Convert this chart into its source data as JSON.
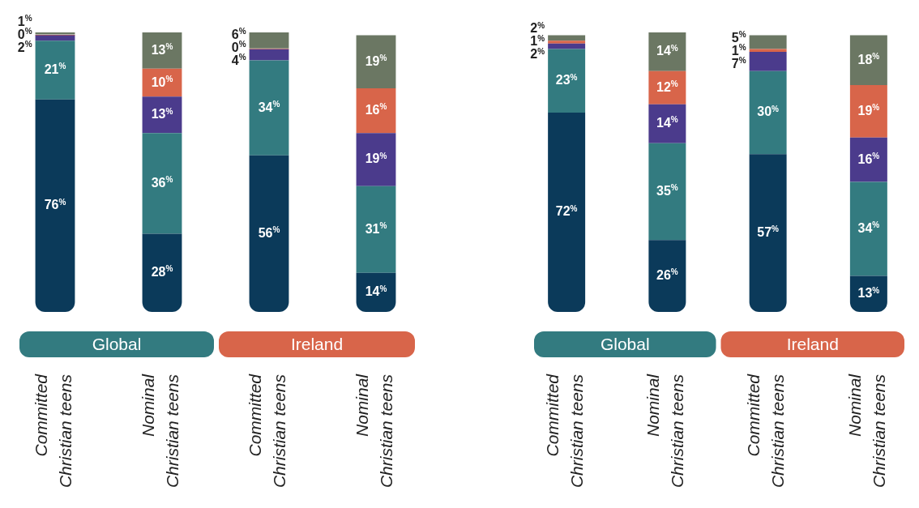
{
  "chart_data": [
    {
      "type": "bar",
      "stacked": true,
      "categories": [
        "Committed Christian teens",
        "Nominal Christian teens",
        "Committed Christian teens",
        "Nominal Christian teens"
      ],
      "series": [
        {
          "color": "#0b3a5a",
          "values": [
            76,
            28,
            56,
            14
          ],
          "value_labels": [
            "76%",
            "28%",
            "56%",
            "14%"
          ]
        },
        {
          "color": "#337b80",
          "values": [
            21,
            36,
            34,
            31
          ],
          "value_labels": [
            "21%",
            "36%",
            "34%",
            "31%"
          ]
        },
        {
          "color": "#4b3b8c",
          "values": [
            2,
            13,
            4,
            19
          ],
          "value_labels": [
            "2%",
            "13%",
            "4%",
            "19%"
          ]
        },
        {
          "color": "#d8654a",
          "values": [
            0,
            10,
            0,
            16
          ],
          "value_labels": [
            "0%",
            "10%",
            "0%",
            "16%"
          ]
        },
        {
          "color": "#6b7763",
          "values": [
            1,
            13,
            6,
            19
          ],
          "value_labels": [
            "1%",
            "13%",
            "6%",
            "19%"
          ]
        }
      ],
      "annotations": [
        "Global",
        "Ireland"
      ]
    },
    {
      "type": "bar",
      "stacked": true,
      "categories": [
        "Committed Christian teens",
        "Nominal Christian teens",
        "Committed Christian teens",
        "Nominal Christian teens"
      ],
      "series": [
        {
          "color": "#0b3a5a",
          "values": [
            72,
            26,
            57,
            13
          ],
          "value_labels": [
            "72%",
            "26%",
            "57%",
            "13%"
          ]
        },
        {
          "color": "#337b80",
          "values": [
            23,
            35,
            30,
            34
          ],
          "value_labels": [
            "23%",
            "35%",
            "30%",
            "34%"
          ]
        },
        {
          "color": "#4b3b8c",
          "values": [
            2,
            14,
            7,
            16
          ],
          "value_labels": [
            "2%",
            "14%",
            "7%",
            "16%"
          ]
        },
        {
          "color": "#d8654a",
          "values": [
            1,
            12,
            1,
            19
          ],
          "value_labels": [
            "1%",
            "12%",
            "1%",
            "19%"
          ]
        },
        {
          "color": "#6b7763",
          "values": [
            2,
            14,
            5,
            18
          ],
          "value_labels": [
            "2%",
            "14%",
            "5%",
            "18%"
          ]
        }
      ],
      "annotations": [
        "Global",
        "Ireland"
      ]
    }
  ]
}
